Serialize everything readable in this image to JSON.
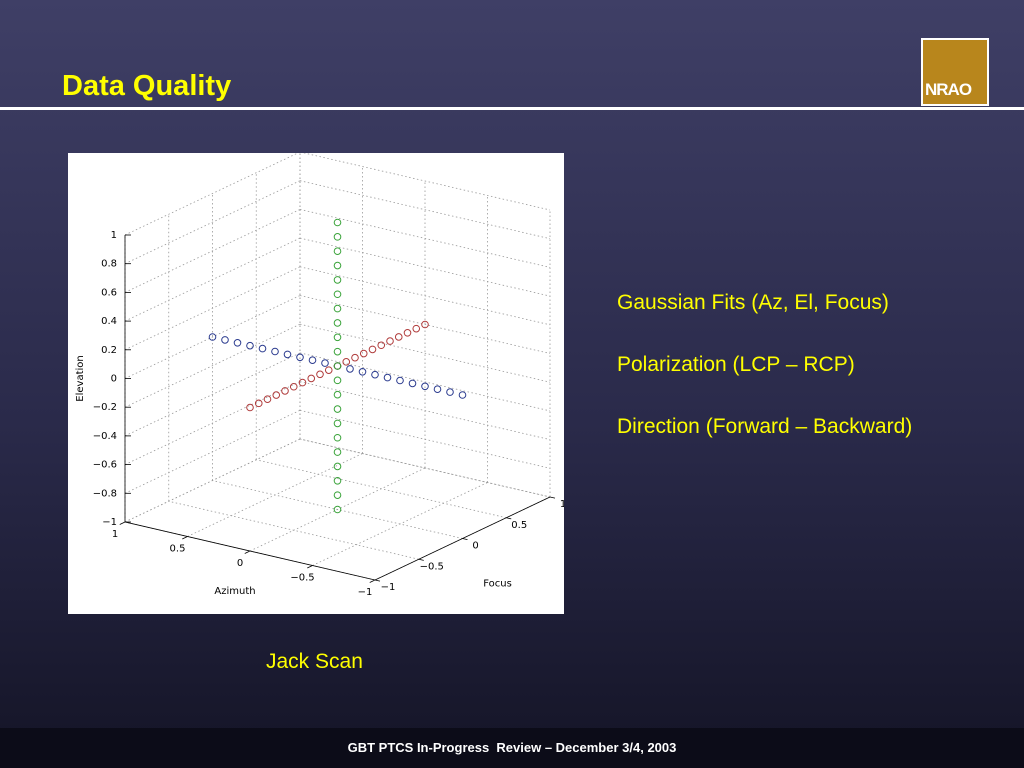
{
  "header": {
    "title": "Data Quality",
    "logo": "NRAO"
  },
  "figure": {
    "type": "scatter3d",
    "xlabel": "Azimuth",
    "ylabel": "Focus",
    "zlabel": "Elevation",
    "xlim": [
      -1,
      1
    ],
    "ylim": [
      -1,
      1
    ],
    "zlim": [
      -1,
      1
    ],
    "xticks": [
      {
        "value": -1,
        "label": "−1"
      },
      {
        "value": -0.5,
        "label": "−0.5"
      },
      0,
      0.5,
      1
    ],
    "yticks": [
      {
        "value": -1,
        "label": "−1"
      },
      {
        "value": -0.5,
        "label": "−0.5"
      },
      0,
      0.5,
      1
    ],
    "zticks": [
      {
        "value": -1,
        "label": "−1"
      },
      {
        "value": -0.8,
        "label": "−0.8"
      },
      {
        "value": -0.6,
        "label": "−0.6"
      },
      {
        "value": -0.4,
        "label": "−0.4"
      },
      {
        "value": -0.2,
        "label": "−0.2"
      },
      0,
      0.2,
      0.4,
      0.6,
      0.8,
      1
    ],
    "series": [
      {
        "color": "#2b3b8f",
        "azimuth": [
          -1,
          -0.9,
          -0.8,
          -0.7,
          -0.6,
          -0.5,
          -0.4,
          -0.3,
          -0.2,
          -0.1,
          0,
          0.1,
          0.2,
          0.3,
          0.4,
          0.5,
          0.6,
          0.7,
          0.8,
          0.9,
          1
        ],
        "focus": [
          0,
          0,
          0,
          0,
          0,
          0,
          0,
          0,
          0,
          0,
          0,
          0,
          0,
          0,
          0,
          0,
          0,
          0,
          0,
          0,
          0
        ],
        "elevation": [
          0,
          0,
          0,
          0,
          0,
          0,
          0,
          0,
          0,
          0,
          0,
          0,
          0,
          0,
          0,
          0,
          0,
          0,
          0,
          0,
          0
        ]
      },
      {
        "color": "#b03c3c",
        "azimuth": [
          0,
          0,
          0,
          0,
          0,
          0,
          0,
          0,
          0,
          0,
          0,
          0,
          0,
          0,
          0,
          0,
          0,
          0,
          0,
          0,
          0
        ],
        "focus": [
          -1,
          -0.9,
          -0.8,
          -0.7,
          -0.6,
          -0.5,
          -0.4,
          -0.3,
          -0.2,
          -0.1,
          0,
          0.1,
          0.2,
          0.3,
          0.4,
          0.5,
          0.6,
          0.7,
          0.8,
          0.9,
          1
        ],
        "elevation": [
          0,
          0,
          0,
          0,
          0,
          0,
          0,
          0,
          0,
          0,
          0,
          0,
          0,
          0,
          0,
          0,
          0,
          0,
          0,
          0,
          0
        ]
      },
      {
        "color": "#3aa33a",
        "azimuth": [
          0,
          0,
          0,
          0,
          0,
          0,
          0,
          0,
          0,
          0,
          0,
          0,
          0,
          0,
          0,
          0,
          0,
          0,
          0,
          0,
          0
        ],
        "focus": [
          0,
          0,
          0,
          0,
          0,
          0,
          0,
          0,
          0,
          0,
          0,
          0,
          0,
          0,
          0,
          0,
          0,
          0,
          0,
          0,
          0
        ],
        "elevation": [
          -1,
          -0.9,
          -0.8,
          -0.7,
          -0.6,
          -0.5,
          -0.4,
          -0.3,
          -0.2,
          -0.1,
          0,
          0.1,
          0.2,
          0.3,
          0.4,
          0.5,
          0.6,
          0.7,
          0.8,
          0.9,
          1
        ]
      }
    ]
  },
  "bullets": [
    "Gaussian Fits (Az, El, Focus)",
    "Polarization (LCP – RCP)",
    "Direction (Forward – Backward)"
  ],
  "caption": "Jack Scan",
  "footer": "GBT PTCS In-Progress  Review – December 3/4, 2003"
}
